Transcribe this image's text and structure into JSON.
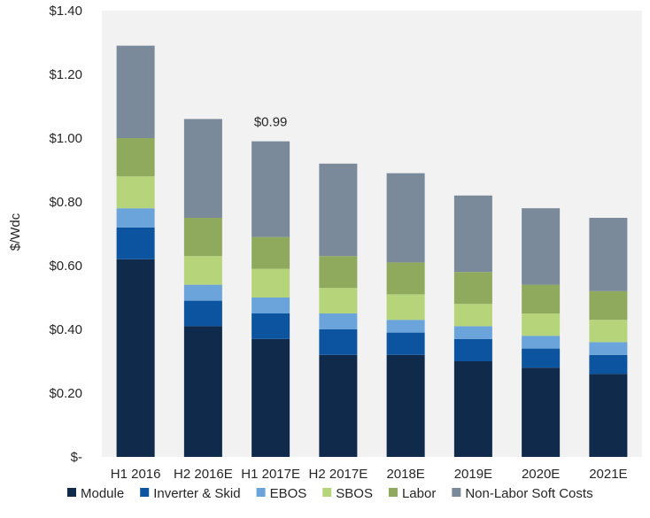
{
  "chart_data": {
    "type": "bar",
    "stacked": true,
    "title": "",
    "xlabel": "",
    "ylabel": "$/Wdc",
    "ylim": [
      0,
      1.4
    ],
    "y_ticks": [
      {
        "value": 0.0,
        "label": "$-"
      },
      {
        "value": 0.2,
        "label": "$0.20"
      },
      {
        "value": 0.4,
        "label": "$0.40"
      },
      {
        "value": 0.6,
        "label": "$0.60"
      },
      {
        "value": 0.8,
        "label": "$0.80"
      },
      {
        "value": 1.0,
        "label": "$1.00"
      },
      {
        "value": 1.2,
        "label": "$1.20"
      },
      {
        "value": 1.4,
        "label": "$1.40"
      }
    ],
    "categories": [
      "H1 2016",
      "H2 2016E",
      "H1 2017E",
      "H2 2017E",
      "2018E",
      "2019E",
      "2020E",
      "2021E"
    ],
    "series": [
      {
        "name": "Module",
        "color": "#0f2a4a",
        "values": [
          0.62,
          0.41,
          0.37,
          0.32,
          0.32,
          0.3,
          0.28,
          0.26
        ]
      },
      {
        "name": "Inverter & Skid",
        "color": "#0c54a0",
        "values": [
          0.1,
          0.08,
          0.08,
          0.08,
          0.07,
          0.07,
          0.06,
          0.06
        ]
      },
      {
        "name": "EBOS",
        "color": "#6aa4db",
        "values": [
          0.06,
          0.05,
          0.05,
          0.05,
          0.04,
          0.04,
          0.04,
          0.04
        ]
      },
      {
        "name": "SBOS",
        "color": "#b6d47a",
        "values": [
          0.1,
          0.09,
          0.09,
          0.08,
          0.08,
          0.07,
          0.07,
          0.07
        ]
      },
      {
        "name": "Labor",
        "color": "#8faa5c",
        "values": [
          0.12,
          0.12,
          0.1,
          0.1,
          0.1,
          0.1,
          0.09,
          0.09
        ]
      },
      {
        "name": "Non-Labor Soft Costs",
        "color": "#7a8a9b",
        "values": [
          0.29,
          0.31,
          0.3,
          0.29,
          0.28,
          0.24,
          0.24,
          0.23
        ]
      }
    ],
    "annotations": [
      {
        "category": "H1 2017E",
        "value": 0.99,
        "label": "$0.99"
      }
    ],
    "legend_position": "bottom",
    "grid": false
  }
}
